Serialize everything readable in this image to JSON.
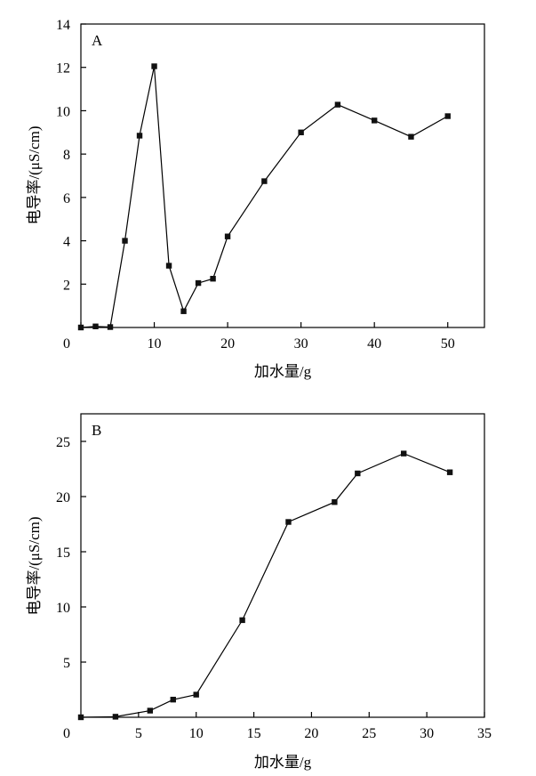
{
  "chart_data": [
    {
      "type": "line",
      "panel_label": "A",
      "xlabel": "加水量/g",
      "ylabel": "电导率/(μS/cm)",
      "xlim": [
        0,
        55
      ],
      "ylim": [
        0,
        14
      ],
      "x_ticks": [
        0,
        10,
        20,
        30,
        40,
        50
      ],
      "y_ticks": [
        2,
        4,
        6,
        8,
        10,
        12,
        14
      ],
      "origin_label": "0",
      "grid": false,
      "series": [
        {
          "x": [
            0,
            2,
            4,
            6,
            8,
            10,
            12,
            14,
            16,
            18,
            20,
            25,
            30,
            35,
            40,
            45,
            50
          ],
          "y": [
            0.0,
            0.05,
            0.02,
            4.0,
            8.85,
            12.05,
            2.85,
            0.75,
            2.05,
            2.25,
            4.2,
            6.75,
            9.0,
            10.28,
            9.55,
            8.8,
            9.75
          ]
        }
      ]
    },
    {
      "type": "line",
      "panel_label": "B",
      "xlabel": "加水量/g",
      "ylabel": "电导率/(μS/cm)",
      "xlim": [
        0,
        35
      ],
      "ylim": [
        0,
        27.5
      ],
      "x_ticks": [
        5,
        10,
        15,
        20,
        25,
        30,
        35
      ],
      "y_ticks": [
        5,
        10,
        15,
        20,
        25
      ],
      "origin_label": "0",
      "grid": false,
      "series": [
        {
          "x": [
            0,
            3,
            6,
            8,
            10,
            14,
            18,
            22,
            24,
            28,
            32
          ],
          "y": [
            0.0,
            0.05,
            0.6,
            1.6,
            2.05,
            8.8,
            17.7,
            19.5,
            22.1,
            23.9,
            22.2
          ]
        }
      ]
    }
  ]
}
